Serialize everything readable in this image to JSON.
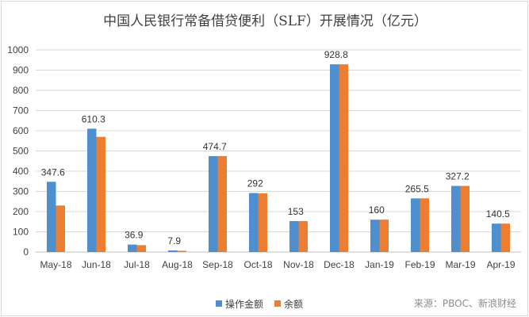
{
  "chart_data": {
    "type": "bar",
    "title": "中国人民银行常备借贷便利（SLF）开展情况（亿元）",
    "categories": [
      "May-18",
      "Jun-18",
      "Jul-18",
      "Aug-18",
      "Sep-18",
      "Oct-18",
      "Nov-18",
      "Dec-18",
      "Jan-19",
      "Feb-19",
      "Mar-19",
      "Apr-19"
    ],
    "series": [
      {
        "name": "操作金额",
        "color": "#4e8fd0",
        "values": [
          347.6,
          610.3,
          36.9,
          7.9,
          474.7,
          292,
          153,
          928.8,
          160,
          265.5,
          327.2,
          140.5
        ],
        "labels": [
          "347.6",
          "610.3",
          "36.9",
          "7.9",
          "474.7",
          "292",
          "153",
          "928.8",
          "160",
          "265.5",
          "327.2",
          "140.5"
        ]
      },
      {
        "name": "余额",
        "color": "#ed7d31",
        "values": [
          230,
          570,
          34,
          6,
          474.7,
          290,
          153,
          928.8,
          160,
          265.5,
          327.2,
          140.5
        ]
      }
    ],
    "ylim": [
      0,
      1000
    ],
    "yticks": [
      "0",
      "100",
      "200",
      "300",
      "400",
      "500",
      "600",
      "700",
      "800",
      "900",
      "1000"
    ],
    "grid": true,
    "legend": "bottom"
  },
  "source": "来源：PBOC、新浪财经"
}
